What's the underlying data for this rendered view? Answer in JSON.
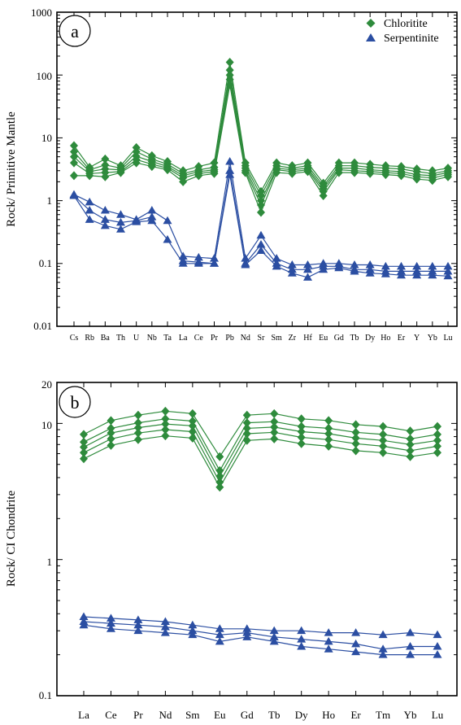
{
  "colors": {
    "chloritite": "#2e8b3c",
    "serpentinite": "#2b4ea2"
  },
  "legend": {
    "chloritite": "Chloritite",
    "serpentinite": "Serpentinite",
    "placement": "top-right"
  },
  "chart_data": [
    {
      "type": "line",
      "panel_label": "a",
      "title": "",
      "xlabel": "",
      "ylabel": "Rock/ Primitive Mantle",
      "yscale": "log",
      "ylim": [
        0.01,
        1000
      ],
      "ytick_labels": [
        "0.01",
        "0.1",
        "1",
        "10",
        "100",
        "1000"
      ],
      "categories": [
        "Cs",
        "Rb",
        "Ba",
        "Th",
        "U",
        "Nb",
        "Ta",
        "La",
        "Ce",
        "Pr",
        "Pb",
        "Nd",
        "Sr",
        "Sm",
        "Zr",
        "Hf",
        "Eu",
        "Gd",
        "Tb",
        "Dy",
        "Ho",
        "Er",
        "Y",
        "Yb",
        "Lu"
      ],
      "series": [
        {
          "name": "Chloritite",
          "group": "chloritite",
          "values": [
            7.5,
            3.4,
            4.6,
            3.6,
            7,
            5.2,
            4.2,
            3,
            3.5,
            4,
            160,
            4,
            1.4,
            4,
            3.6,
            4,
            1.9,
            4,
            4,
            3.8,
            3.6,
            3.5,
            3.2,
            3,
            3.3
          ]
        },
        {
          "name": "",
          "group": "chloritite",
          "values": [
            6,
            3.1,
            3.7,
            3.3,
            6,
            4.6,
            3.8,
            2.7,
            3.1,
            3.4,
            120,
            3.6,
            1.2,
            3.6,
            3.3,
            3.6,
            1.7,
            3.6,
            3.6,
            3.4,
            3.3,
            3.2,
            2.9,
            2.7,
            3
          ]
        },
        {
          "name": "",
          "group": "chloritite",
          "values": [
            5,
            2.9,
            3.2,
            3.1,
            5.1,
            4.2,
            3.5,
            2.5,
            2.9,
            3.1,
            100,
            3.3,
            1,
            3.3,
            3.1,
            3.3,
            1.55,
            3.3,
            3.3,
            3.1,
            3,
            2.9,
            2.6,
            2.5,
            2.8
          ]
        },
        {
          "name": "",
          "group": "chloritite",
          "values": [
            4,
            2.7,
            2.8,
            2.9,
            4.5,
            3.8,
            3.3,
            2.3,
            2.7,
            2.9,
            85,
            3,
            0.85,
            3.1,
            2.9,
            3.1,
            1.4,
            3.1,
            3,
            2.9,
            2.8,
            2.7,
            2.4,
            2.3,
            2.6
          ]
        },
        {
          "name": "",
          "group": "chloritite",
          "values": [
            2.5,
            2.5,
            2.4,
            2.8,
            4,
            3.5,
            3.1,
            2,
            2.5,
            2.7,
            70,
            2.8,
            0.65,
            2.8,
            2.7,
            2.9,
            1.2,
            2.8,
            2.8,
            2.7,
            2.6,
            2.5,
            2.2,
            2.1,
            2.4
          ]
        },
        {
          "name": "Serpentinite",
          "group": "serpentinite",
          "values": [
            1.25,
            0.95,
            0.7,
            0.6,
            0.5,
            0.7,
            0.48,
            0.13,
            0.125,
            0.12,
            4.2,
            0.12,
            0.28,
            0.12,
            0.095,
            0.095,
            0.1,
            0.1,
            0.095,
            0.095,
            0.09,
            0.09,
            0.09,
            0.09,
            0.09
          ]
        },
        {
          "name": "",
          "group": "serpentinite",
          "values": [
            1.2,
            0.7,
            0.5,
            0.45,
            0.48,
            0.55,
            null,
            0.11,
            0.105,
            0.1,
            3,
            0.1,
            0.2,
            0.1,
            0.08,
            0.08,
            0.09,
            0.09,
            0.08,
            0.08,
            0.075,
            0.075,
            0.075,
            0.075,
            0.075
          ]
        },
        {
          "name": "",
          "group": "serpentinite",
          "values": [
            1.2,
            0.5,
            0.4,
            0.35,
            0.46,
            0.48,
            0.24,
            0.1,
            0.1,
            0.1,
            2.6,
            0.095,
            0.16,
            0.09,
            0.07,
            0.06,
            0.08,
            0.085,
            0.075,
            0.07,
            0.068,
            0.065,
            0.065,
            0.065,
            0.063
          ]
        }
      ]
    },
    {
      "type": "line",
      "panel_label": "b",
      "title": "",
      "xlabel": "",
      "ylabel": "Rock/ CI Chondrite",
      "yscale": "log",
      "ylim": [
        0.1,
        20
      ],
      "ytick_labels": [
        "0.1",
        "1",
        "10",
        "20"
      ],
      "categories": [
        "La",
        "Ce",
        "Pr",
        "Nd",
        "Sm",
        "Eu",
        "Gd",
        "Tb",
        "Dy",
        "Ho",
        "Er",
        "Tm",
        "Yb",
        "Lu"
      ],
      "series": [
        {
          "name": "",
          "group": "chloritite",
          "values": [
            8.3,
            10.5,
            11.5,
            12.3,
            11.8,
            5.7,
            11.5,
            11.8,
            10.8,
            10.5,
            9.8,
            9.5,
            8.8,
            9.5
          ]
        },
        {
          "name": "",
          "group": "chloritite",
          "values": [
            7.3,
            9.2,
            10.1,
            10.8,
            10.4,
            4.5,
            10.1,
            10.3,
            9.5,
            9.2,
            8.6,
            8.3,
            7.7,
            8.3
          ]
        },
        {
          "name": "",
          "group": "chloritite",
          "values": [
            6.7,
            8.5,
            9.3,
            9.9,
            9.6,
            4.1,
            9.2,
            9.4,
            8.7,
            8.4,
            7.8,
            7.5,
            7,
            7.5
          ]
        },
        {
          "name": "",
          "group": "chloritite",
          "values": [
            6.1,
            7.7,
            8.5,
            9,
            8.7,
            3.7,
            8.4,
            8.6,
            7.9,
            7.6,
            7.1,
            6.8,
            6.3,
            6.8
          ]
        },
        {
          "name": "",
          "group": "chloritite",
          "values": [
            5.5,
            6.9,
            7.6,
            8.1,
            7.8,
            3.4,
            7.5,
            7.7,
            7.1,
            6.8,
            6.3,
            6.1,
            5.7,
            6.1
          ]
        },
        {
          "name": "",
          "group": "serpentinite",
          "values": [
            0.38,
            0.37,
            0.36,
            0.35,
            0.33,
            0.31,
            0.31,
            0.3,
            0.3,
            0.29,
            0.29,
            0.28,
            0.29,
            0.28
          ]
        },
        {
          "name": "",
          "group": "serpentinite",
          "values": [
            0.35,
            0.34,
            0.33,
            0.32,
            0.3,
            0.28,
            0.29,
            0.27,
            0.26,
            0.25,
            0.24,
            0.22,
            0.23,
            0.23
          ]
        },
        {
          "name": "",
          "group": "serpentinite",
          "values": [
            0.33,
            0.31,
            0.3,
            0.29,
            0.28,
            0.25,
            0.27,
            0.25,
            0.23,
            0.22,
            0.21,
            0.2,
            0.2,
            0.2
          ]
        }
      ]
    }
  ]
}
